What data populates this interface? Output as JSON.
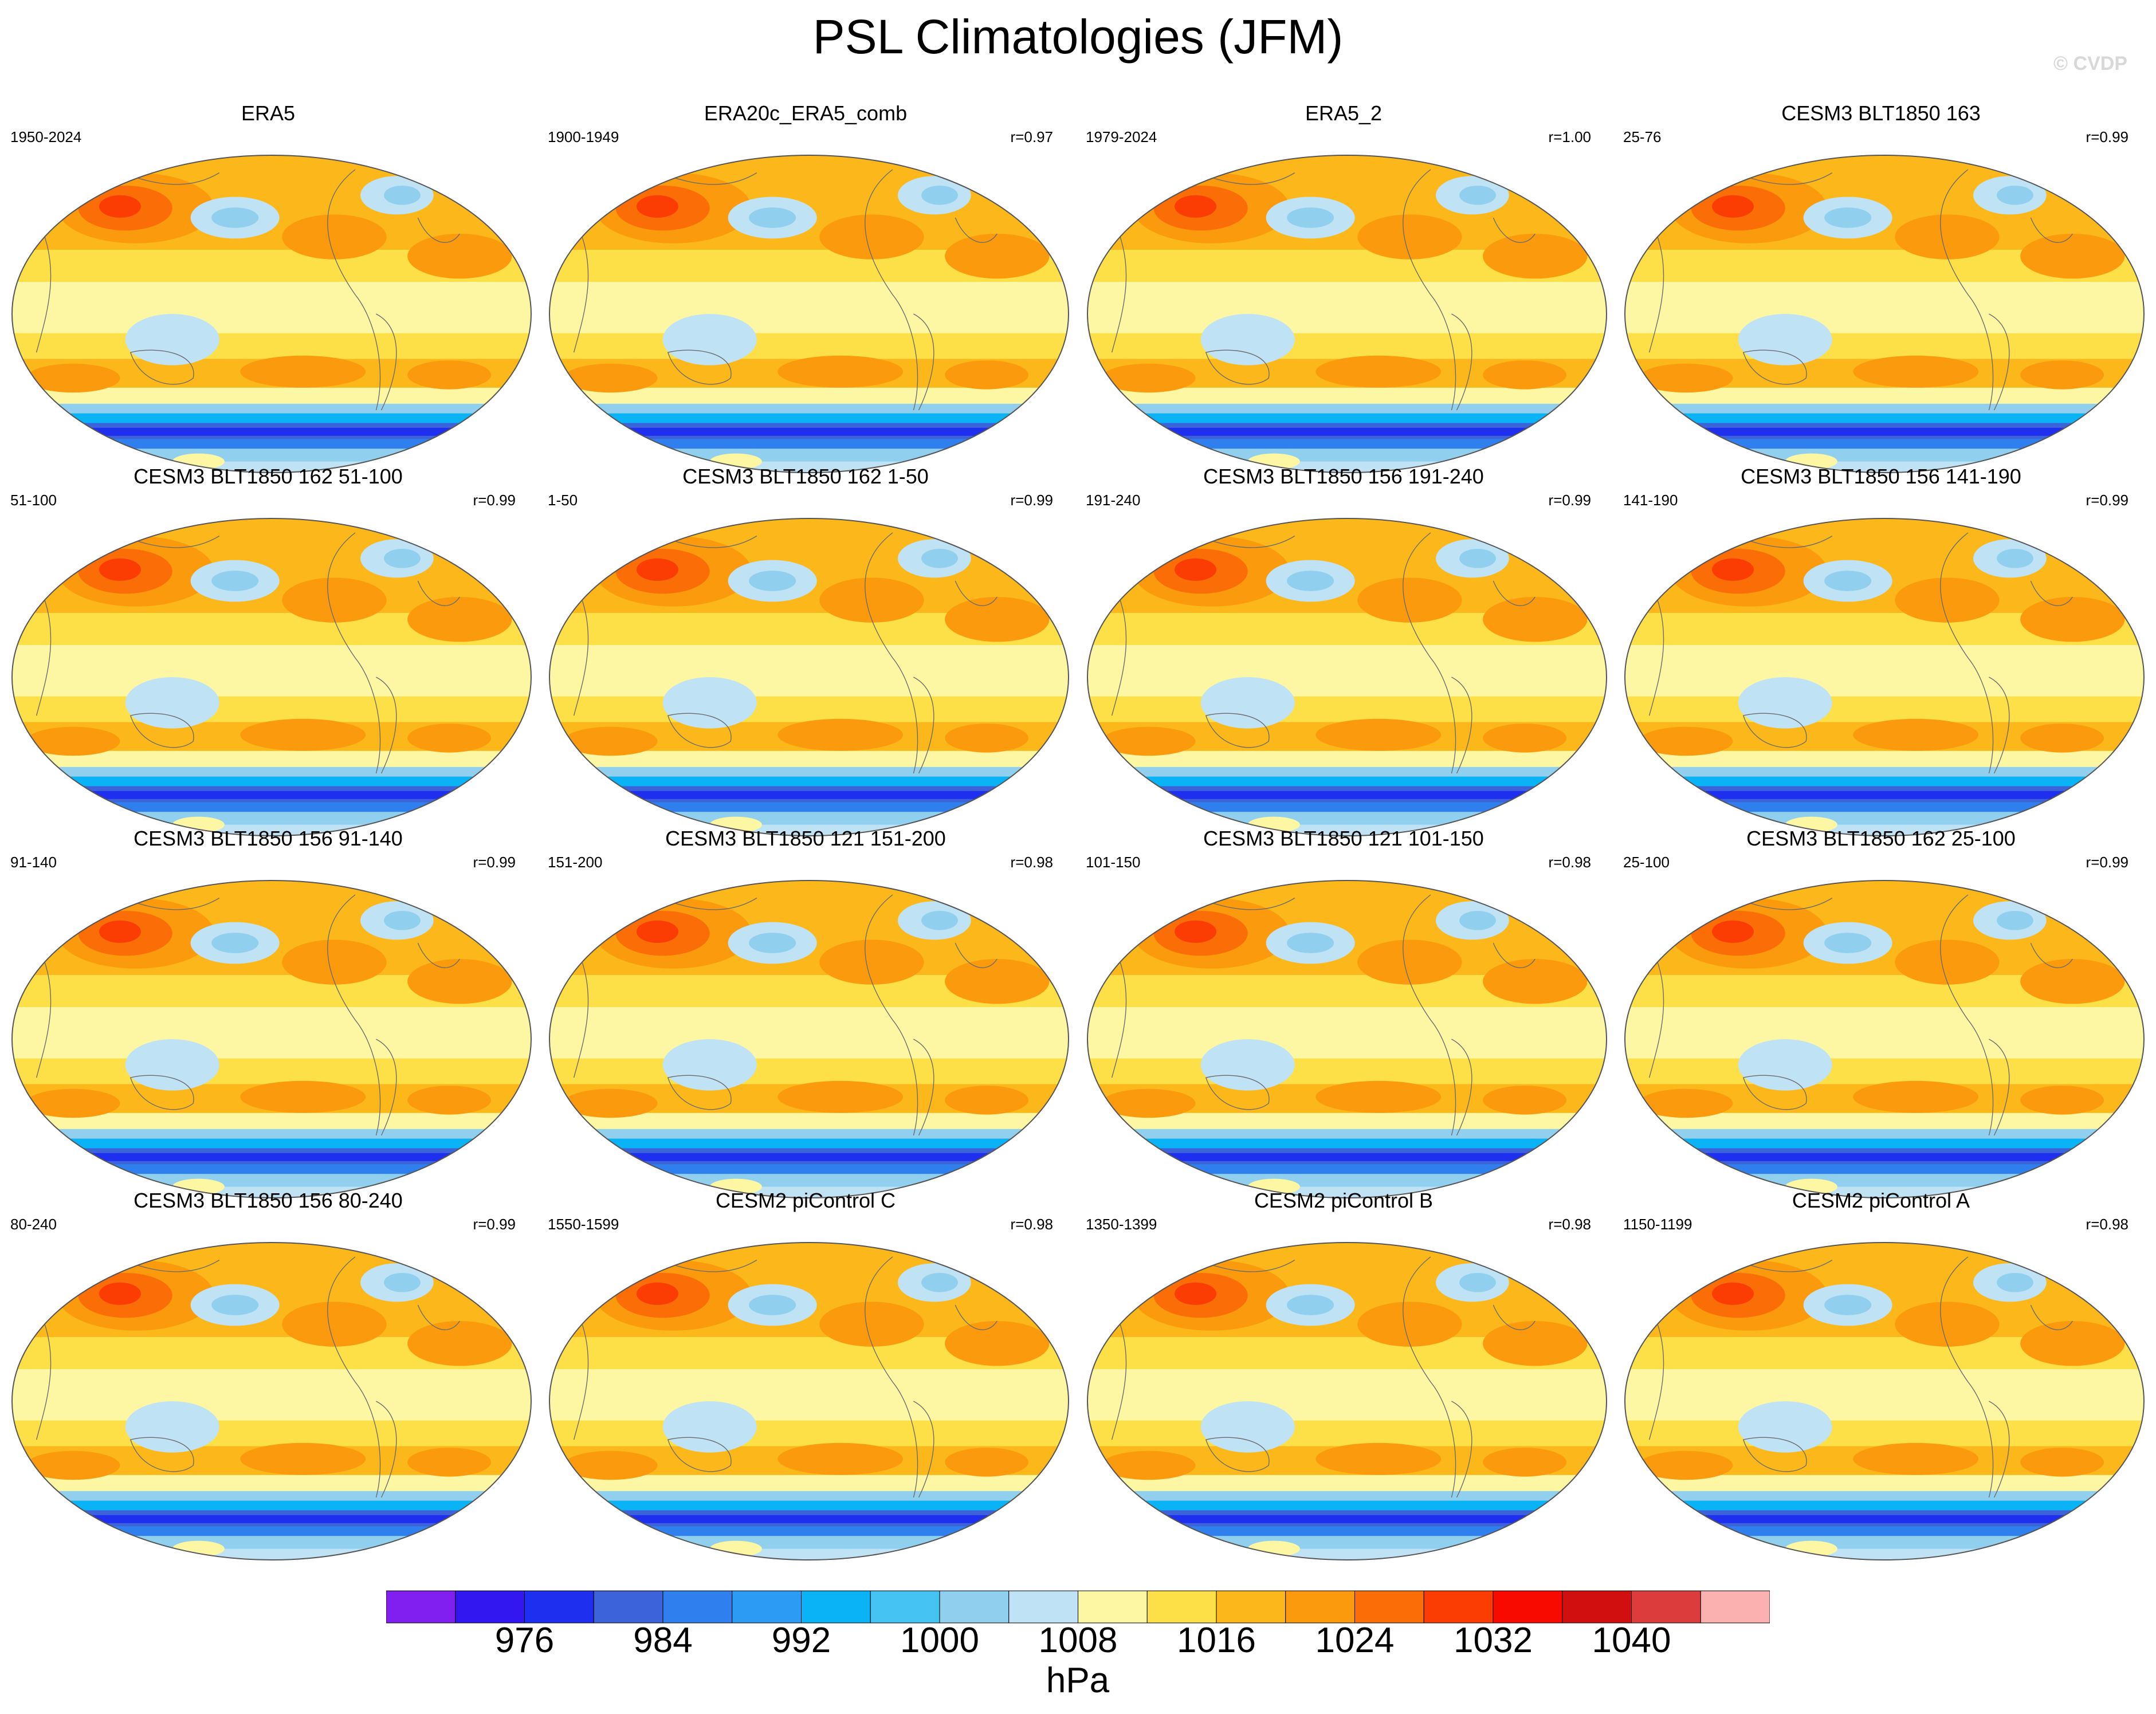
{
  "title": "PSL Climatologies (JFM)",
  "watermark": "© CVDP",
  "panels": [
    {
      "title": "ERA5",
      "years": "1950-2024",
      "corr": ""
    },
    {
      "title": "ERA20c_ERA5_comb",
      "years": "1900-1949",
      "corr": "r=0.97"
    },
    {
      "title": "ERA5_2",
      "years": "1979-2024",
      "corr": "r=1.00"
    },
    {
      "title": "CESM3 BLT1850 163",
      "years": "25-76",
      "corr": "r=0.99"
    },
    {
      "title": "CESM3 BLT1850 162 51-100",
      "years": "51-100",
      "corr": "r=0.99"
    },
    {
      "title": "CESM3 BLT1850 162 1-50",
      "years": "1-50",
      "corr": "r=0.99"
    },
    {
      "title": "CESM3 BLT1850 156 191-240",
      "years": "191-240",
      "corr": "r=0.99"
    },
    {
      "title": "CESM3 BLT1850 156 141-190",
      "years": "141-190",
      "corr": "r=0.99"
    },
    {
      "title": "CESM3 BLT1850 156 91-140",
      "years": "91-140",
      "corr": "r=0.99"
    },
    {
      "title": "CESM3 BLT1850 121 151-200",
      "years": "151-200",
      "corr": "r=0.98"
    },
    {
      "title": "CESM3 BLT1850 121 101-150",
      "years": "101-150",
      "corr": "r=0.98"
    },
    {
      "title": "CESM3 BLT1850 162 25-100",
      "years": "25-100",
      "corr": "r=0.99"
    },
    {
      "title": "CESM3 BLT1850 156 80-240",
      "years": "80-240",
      "corr": "r=0.99"
    },
    {
      "title": "CESM2 piControl C",
      "years": "1550-1599",
      "corr": "r=0.98"
    },
    {
      "title": "CESM2 piControl B",
      "years": "1350-1399",
      "corr": "r=0.98"
    },
    {
      "title": "CESM2 piControl A",
      "years": "1150-1199",
      "corr": "r=0.98"
    }
  ],
  "colorbar": {
    "units": "hPa",
    "labels": [
      "976",
      "984",
      "992",
      "1000",
      "1008",
      "1016",
      "1024",
      "1032",
      "1040"
    ],
    "colors": [
      "#7f1ff0",
      "#3317f0",
      "#1f2ff0",
      "#3d63db",
      "#2f80ee",
      "#2b9bf3",
      "#09b3f6",
      "#45c3f3",
      "#90d0ee",
      "#bfe2f5",
      "#fdf7a4",
      "#fde047",
      "#fcb81a",
      "#fb9a0c",
      "#fb6d06",
      "#fb3d03",
      "#f80a00",
      "#d10f0f",
      "#dd3c3c",
      "#fcb1b1"
    ]
  }
}
